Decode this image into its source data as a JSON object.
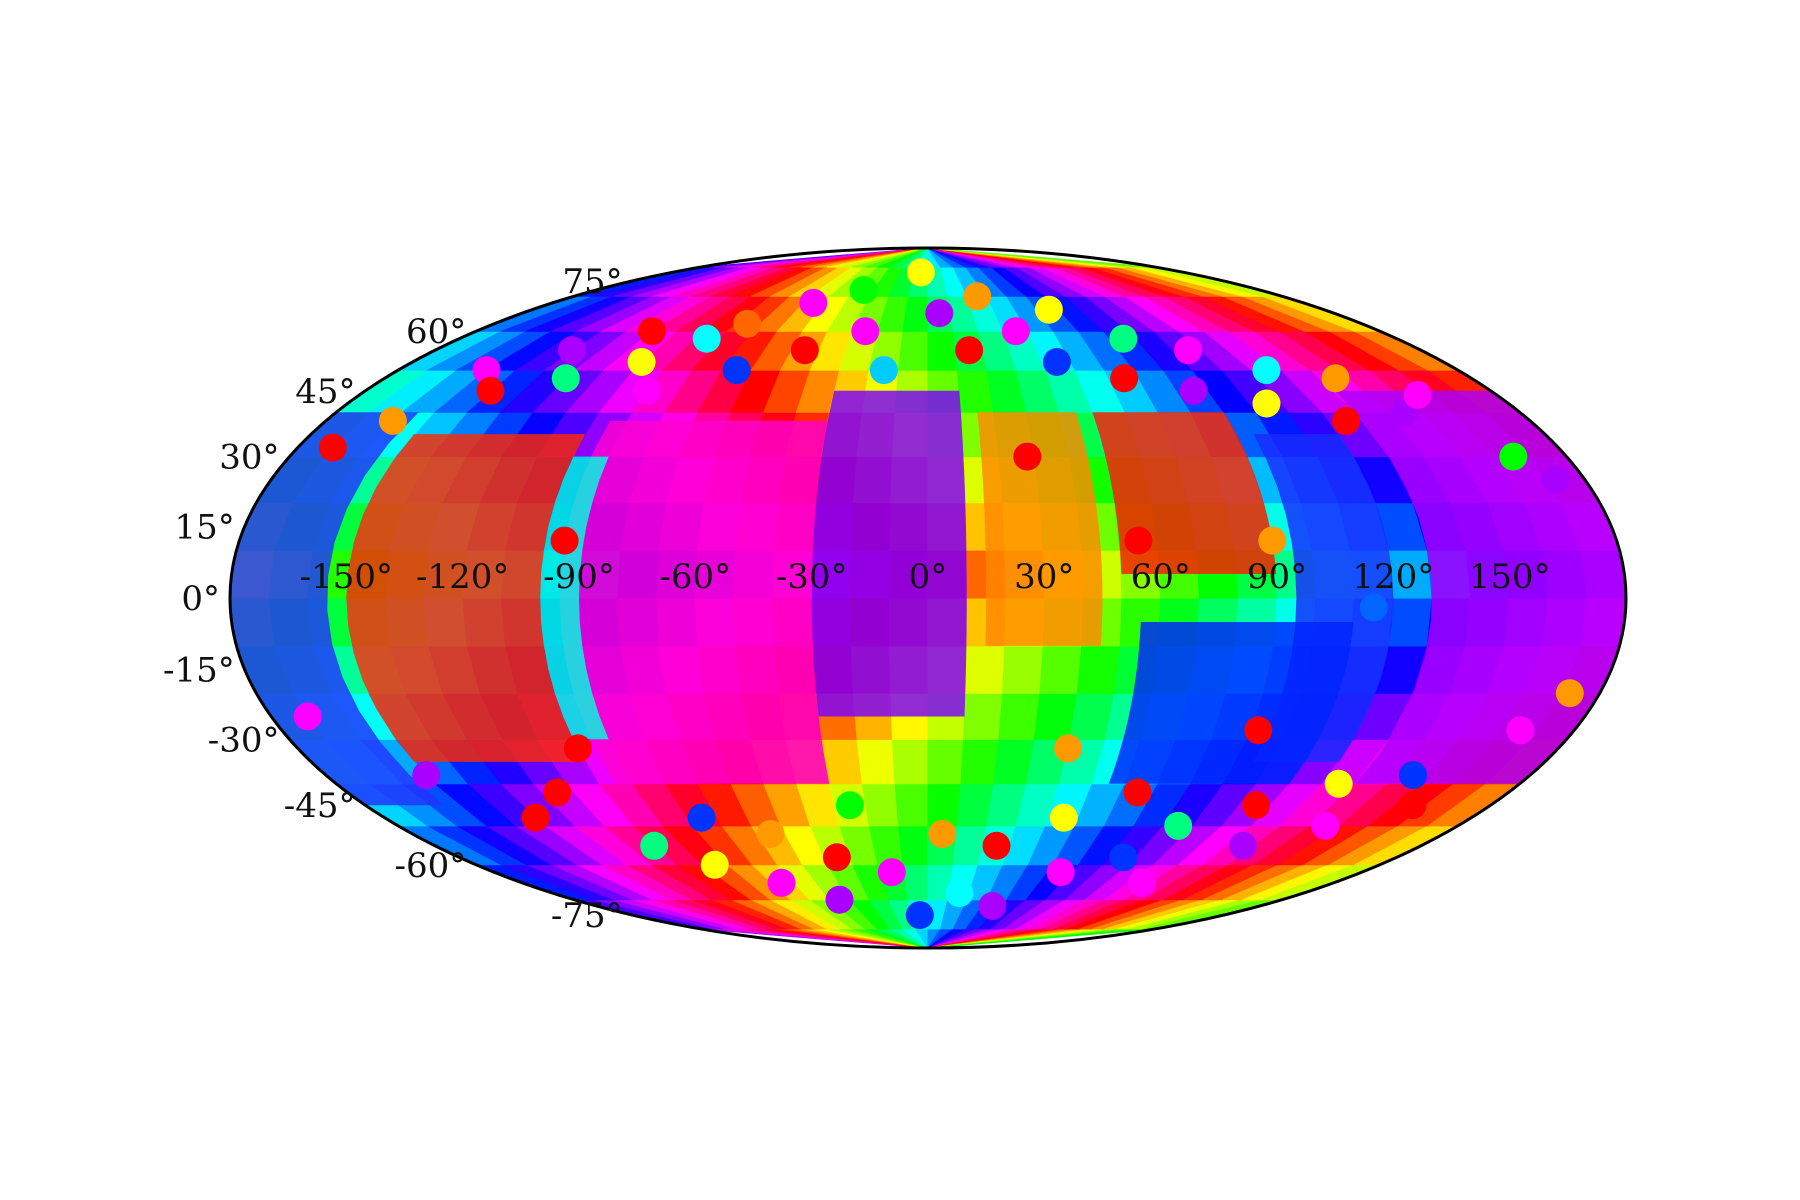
{
  "chart_data": {
    "type": "scatter",
    "projection": "mollweide",
    "title": "",
    "xlabel": "",
    "ylabel": "",
    "xlim": [
      -180,
      180
    ],
    "ylim": [
      -90,
      90
    ],
    "grid": false,
    "legend": "none",
    "colormap": "hsv",
    "x_ticks": [
      {
        "value": -150,
        "label": "-150°"
      },
      {
        "value": -120,
        "label": "-120°"
      },
      {
        "value": -90,
        "label": "-90°"
      },
      {
        "value": -60,
        "label": "-60°"
      },
      {
        "value": -30,
        "label": "-30°"
      },
      {
        "value": 0,
        "label": "0°"
      },
      {
        "value": 30,
        "label": "30°"
      },
      {
        "value": 60,
        "label": "60°"
      },
      {
        "value": 90,
        "label": "90°"
      },
      {
        "value": 120,
        "label": "120°"
      },
      {
        "value": 150,
        "label": "150°"
      }
    ],
    "y_ticks": [
      {
        "value": 75,
        "label": "75°"
      },
      {
        "value": 60,
        "label": "60°"
      },
      {
        "value": 45,
        "label": "45°"
      },
      {
        "value": 30,
        "label": "30°"
      },
      {
        "value": 15,
        "label": "15°"
      },
      {
        "value": 0,
        "label": "0°"
      },
      {
        "value": -15,
        "label": "-15°"
      },
      {
        "value": -30,
        "label": "-30°"
      },
      {
        "value": -45,
        "label": "-45°"
      },
      {
        "value": -60,
        "label": "-60°"
      },
      {
        "value": -75,
        "label": "-75°"
      }
    ],
    "field_regions": [
      {
        "lon": [
          -30,
          10
        ],
        "lat": [
          -25,
          45
        ],
        "color": "#7a00ff"
      },
      {
        "lon": [
          -95,
          -30
        ],
        "lat": [
          -40,
          38
        ],
        "color": "#ff00d0"
      },
      {
        "lon": [
          -150,
          -100
        ],
        "lat": [
          -35,
          35
        ],
        "color": "#ff2a00"
      },
      {
        "lon": [
          -100,
          -90
        ],
        "lat": [
          -30,
          30
        ],
        "color": "#00ffe0"
      },
      {
        "lon": [
          -180,
          -155
        ],
        "lat": [
          -45,
          40
        ],
        "color": "#2233ff"
      },
      {
        "lon": [
          15,
          45
        ],
        "lat": [
          -10,
          40
        ],
        "color": "#ff8800"
      },
      {
        "lon": [
          50,
          90
        ],
        "lat": [
          5,
          40
        ],
        "color": "#ff1a00"
      },
      {
        "lon": [
          95,
          120
        ],
        "lat": [
          -35,
          35
        ],
        "color": "#1a2bff"
      },
      {
        "lon": [
          130,
          180
        ],
        "lat": [
          -40,
          45
        ],
        "color": "#aa00ff"
      },
      {
        "lon": [
          55,
          110
        ],
        "lat": [
          -40,
          -5
        ],
        "color": "#0022ff"
      }
    ],
    "points": [
      {
        "lon": -170,
        "lat": 32,
        "color": "#ff0000"
      },
      {
        "lon": -160,
        "lat": 38,
        "color": "#ff9900"
      },
      {
        "lon": -150,
        "lat": 50,
        "color": "#ff00ff"
      },
      {
        "lon": -140,
        "lat": 45,
        "color": "#ff0000"
      },
      {
        "lon": -130,
        "lat": 55,
        "color": "#aa00ff"
      },
      {
        "lon": -120,
        "lat": 48,
        "color": "#00ff80"
      },
      {
        "lon": -110,
        "lat": 60,
        "color": "#ff0000"
      },
      {
        "lon": -100,
        "lat": 52,
        "color": "#ffff00"
      },
      {
        "lon": -90,
        "lat": 45,
        "color": "#ff00ff"
      },
      {
        "lon": -85,
        "lat": 58,
        "color": "#00ffff"
      },
      {
        "lon": -75,
        "lat": 62,
        "color": "#ff6600"
      },
      {
        "lon": -65,
        "lat": 50,
        "color": "#0033ff"
      },
      {
        "lon": -55,
        "lat": 68,
        "color": "#ff00ff"
      },
      {
        "lon": -45,
        "lat": 55,
        "color": "#ff0000"
      },
      {
        "lon": -35,
        "lat": 72,
        "color": "#00ff00"
      },
      {
        "lon": -25,
        "lat": 60,
        "color": "#ff00ff"
      },
      {
        "lon": -15,
        "lat": 50,
        "color": "#00ccff"
      },
      {
        "lon": -5,
        "lat": 78,
        "color": "#ffff00"
      },
      {
        "lon": 5,
        "lat": 65,
        "color": "#aa00ff"
      },
      {
        "lon": 15,
        "lat": 55,
        "color": "#ff0000"
      },
      {
        "lon": 25,
        "lat": 70,
        "color": "#ff9900"
      },
      {
        "lon": 35,
        "lat": 60,
        "color": "#ff00ff"
      },
      {
        "lon": 45,
        "lat": 52,
        "color": "#0033ff"
      },
      {
        "lon": 55,
        "lat": 66,
        "color": "#ffff00"
      },
      {
        "lon": 65,
        "lat": 48,
        "color": "#ff0000"
      },
      {
        "lon": 75,
        "lat": 58,
        "color": "#00ff80"
      },
      {
        "lon": 85,
        "lat": 45,
        "color": "#aa00ff"
      },
      {
        "lon": 95,
        "lat": 55,
        "color": "#ff00ff"
      },
      {
        "lon": 105,
        "lat": 42,
        "color": "#ffff00"
      },
      {
        "lon": 115,
        "lat": 50,
        "color": "#00ffff"
      },
      {
        "lon": 125,
        "lat": 38,
        "color": "#ff0000"
      },
      {
        "lon": 135,
        "lat": 48,
        "color": "#ff9900"
      },
      {
        "lon": 145,
        "lat": 40,
        "color": "#aa00ff"
      },
      {
        "lon": 155,
        "lat": 44,
        "color": "#ff00ff"
      },
      {
        "lon": 165,
        "lat": 30,
        "color": "#00ff00"
      },
      {
        "lon": 172,
        "lat": 25,
        "color": "#aa00ff"
      },
      {
        "lon": -95,
        "lat": 12,
        "color": "#ff0000"
      },
      {
        "lon": 28,
        "lat": 30,
        "color": "#ff0000"
      },
      {
        "lon": 55,
        "lat": 12,
        "color": "#ff0000"
      },
      {
        "lon": 90,
        "lat": 12,
        "color": "#ff9900"
      },
      {
        "lon": 115,
        "lat": -2,
        "color": "#0066ff"
      },
      {
        "lon": -170,
        "lat": -25,
        "color": "#ff00ff"
      },
      {
        "lon": -150,
        "lat": -38,
        "color": "#aa00ff"
      },
      {
        "lon": -130,
        "lat": -48,
        "color": "#ff0000"
      },
      {
        "lon": -115,
        "lat": -42,
        "color": "#ff0000"
      },
      {
        "lon": -100,
        "lat": -55,
        "color": "#00ff80"
      },
      {
        "lon": -85,
        "lat": -60,
        "color": "#ffff00"
      },
      {
        "lon": -75,
        "lat": -48,
        "color": "#0033ff"
      },
      {
        "lon": -65,
        "lat": -65,
        "color": "#ff00ff"
      },
      {
        "lon": -55,
        "lat": -52,
        "color": "#ff9900"
      },
      {
        "lon": -45,
        "lat": -70,
        "color": "#aa00ff"
      },
      {
        "lon": -35,
        "lat": -58,
        "color": "#ff0000"
      },
      {
        "lon": -25,
        "lat": -45,
        "color": "#00ff00"
      },
      {
        "lon": -15,
        "lat": -62,
        "color": "#ff00ff"
      },
      {
        "lon": -5,
        "lat": -75,
        "color": "#0033ff"
      },
      {
        "lon": 5,
        "lat": -52,
        "color": "#ff9900"
      },
      {
        "lon": 15,
        "lat": -68,
        "color": "#00ffff"
      },
      {
        "lon": 25,
        "lat": -55,
        "color": "#ff0000"
      },
      {
        "lon": 35,
        "lat": -72,
        "color": "#aa00ff"
      },
      {
        "lon": 45,
        "lat": -48,
        "color": "#ffff00"
      },
      {
        "lon": 55,
        "lat": -62,
        "color": "#ff00ff"
      },
      {
        "lon": 65,
        "lat": -42,
        "color": "#ff0000"
      },
      {
        "lon": 75,
        "lat": -58,
        "color": "#0033ff"
      },
      {
        "lon": 85,
        "lat": -50,
        "color": "#00ff80"
      },
      {
        "lon": 95,
        "lat": -65,
        "color": "#ff00ff"
      },
      {
        "lon": 105,
        "lat": -45,
        "color": "#ff0000"
      },
      {
        "lon": 115,
        "lat": -55,
        "color": "#aa00ff"
      },
      {
        "lon": 125,
        "lat": -40,
        "color": "#ffff00"
      },
      {
        "lon": 135,
        "lat": -50,
        "color": "#ff00ff"
      },
      {
        "lon": 145,
        "lat": -38,
        "color": "#0033ff"
      },
      {
        "lon": 155,
        "lat": -45,
        "color": "#ff0000"
      },
      {
        "lon": 165,
        "lat": -28,
        "color": "#ff00ff"
      },
      {
        "lon": 172,
        "lat": -20,
        "color": "#ff9900"
      },
      {
        "lon": 92,
        "lat": -28,
        "color": "#ff0000"
      },
      {
        "lon": 40,
        "lat": -32,
        "color": "#ff9900"
      },
      {
        "lon": -100,
        "lat": -32,
        "color": "#ff0000"
      }
    ]
  }
}
